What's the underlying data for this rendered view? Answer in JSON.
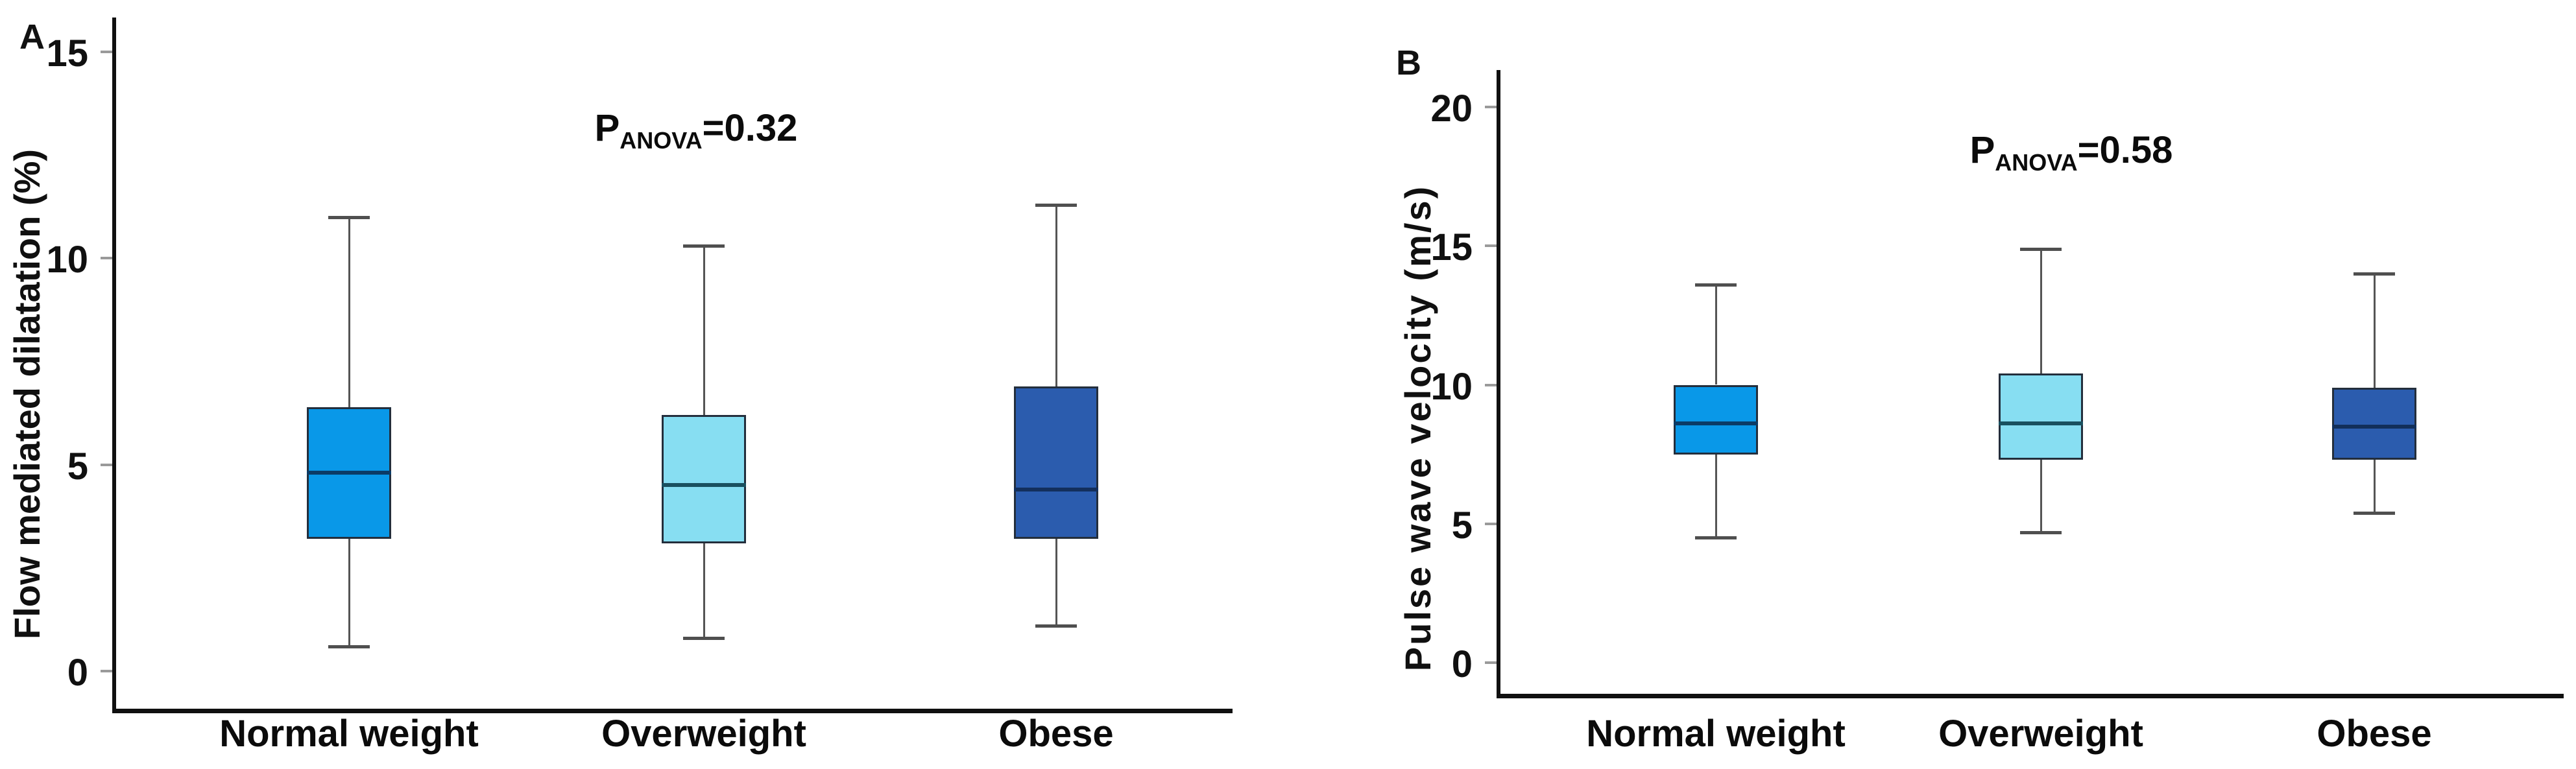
{
  "figure": {
    "background": "#ffffff"
  },
  "colors": {
    "axis": "#101010",
    "whisker": "#555555",
    "box_border": "#232e3c",
    "text": "#111111"
  },
  "chart_data": [
    {
      "type": "boxplot",
      "panel_label": "A",
      "ylabel": "Flow mediated dilatation (%)",
      "annotation": {
        "p": "P",
        "subscript": "ANOVA",
        "value": "=0.32"
      },
      "categories": [
        "Normal weight",
        "Overweight",
        "Obese"
      ],
      "yticks": [
        0,
        5,
        10,
        15
      ],
      "ylim": [
        0,
        15
      ],
      "grid": false,
      "legend": null,
      "series": [
        {
          "name": "Normal weight",
          "min": 0.6,
          "q1": 3.2,
          "median": 4.8,
          "q3": 6.4,
          "max": 11.0,
          "fill": "#0998e8",
          "median_color": "#0b3b66"
        },
        {
          "name": "Overweight",
          "min": 0.8,
          "q1": 3.1,
          "median": 4.5,
          "q3": 6.2,
          "max": 10.3,
          "fill": "#87def2",
          "median_color": "#19505f"
        },
        {
          "name": "Obese",
          "min": 1.1,
          "q1": 3.2,
          "median": 4.4,
          "q3": 6.9,
          "max": 11.3,
          "fill": "#2b5cae",
          "median_color": "#132f5c"
        }
      ]
    },
    {
      "type": "boxplot",
      "panel_label": "B",
      "ylabel": "Pulse wave velocity (m/s)",
      "annotation": {
        "p": "P",
        "subscript": "ANOVA",
        "value": "=0.58"
      },
      "categories": [
        "Normal weight",
        "Overweight",
        "Obese"
      ],
      "yticks": [
        0,
        5,
        10,
        15,
        20
      ],
      "ylim": [
        0,
        20
      ],
      "grid": false,
      "legend": null,
      "series": [
        {
          "name": "Normal weight",
          "min": 4.5,
          "q1": 7.5,
          "median": 8.6,
          "q3": 10.0,
          "max": 13.6,
          "fill": "#0998e8",
          "median_color": "#0b3b66"
        },
        {
          "name": "Overweight",
          "min": 4.7,
          "q1": 7.3,
          "median": 8.6,
          "q3": 10.4,
          "max": 14.9,
          "fill": "#87def2",
          "median_color": "#19505f"
        },
        {
          "name": "Obese",
          "min": 5.4,
          "q1": 7.3,
          "median": 8.5,
          "q3": 9.9,
          "max": 14.0,
          "fill": "#2b5cae",
          "median_color": "#122f5a"
        }
      ]
    }
  ]
}
